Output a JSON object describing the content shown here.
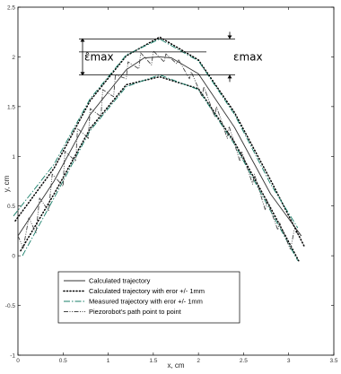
{
  "chart_data": {
    "type": "line",
    "xlabel": "x, cm",
    "ylabel": "y, cm",
    "xlim": [
      0,
      3.5
    ],
    "ylim": [
      -1,
      2.5
    ],
    "xticks": [
      "0",
      "0.5",
      "1",
      "1.5",
      "2",
      "2.5",
      "3",
      "3.5"
    ],
    "yticks": [
      "-1",
      "-0.5",
      "0",
      "0.5",
      "1",
      "1.5",
      "2",
      "2.5"
    ],
    "grid": false,
    "legend_position": "bottom-center",
    "annotations": {
      "eps_max_label": "εmax",
      "eps_hat_max_label": "ε̂max",
      "eps_max_interval": [
        1.82,
        2.18
      ],
      "eps_hat_max_interval": [
        1.82,
        2.18
      ],
      "reference_lines_y": [
        2.18,
        2.05,
        1.82
      ]
    },
    "series": [
      {
        "name": "Calculated trajectory",
        "style": "solid",
        "color": "#333333",
        "x": [
          0,
          0.4,
          0.8,
          1.2,
          1.4,
          1.57,
          1.7,
          2.0,
          2.4,
          2.8,
          3.14
        ],
        "y": [
          0.2,
          0.75,
          1.42,
          1.87,
          1.99,
          2.0,
          1.99,
          1.83,
          1.29,
          0.62,
          0.2
        ]
      },
      {
        "name": "Calculated trajectory with eror +/- 1mm",
        "style": "dotted",
        "color": "#000000",
        "x": [
          -0.03,
          0.4,
          0.8,
          1.2,
          1.57,
          2.0,
          2.4,
          2.8,
          3.17
        ],
        "y": [
          0.35,
          0.88,
          1.56,
          2.01,
          2.2,
          1.97,
          1.44,
          0.76,
          0.1
        ]
      },
      {
        "name": "Calculated trajectory with eror +/- 1mm",
        "style": "dotted",
        "color": "#000000",
        "x": [
          0.03,
          0.4,
          0.8,
          1.2,
          1.57,
          2.0,
          2.4,
          2.8,
          3.11
        ],
        "y": [
          0.05,
          0.62,
          1.28,
          1.72,
          1.8,
          1.68,
          1.14,
          0.48,
          -0.05
        ]
      },
      {
        "name": "Measured trajectory with eror +/- 1mm",
        "style": "dash-dot",
        "color": "#1a7f6a",
        "x": [
          -0.05,
          0.4,
          0.8,
          1.2,
          1.57,
          2.0,
          2.4,
          2.8,
          3.1
        ],
        "y": [
          0.4,
          0.92,
          1.58,
          2.02,
          2.18,
          1.96,
          1.42,
          0.72,
          0.28
        ]
      },
      {
        "name": "Measured trajectory with eror +/- 1mm",
        "style": "dash-dot",
        "color": "#1a7f6a",
        "x": [
          0.05,
          0.4,
          0.8,
          1.2,
          1.57,
          2.0,
          2.4,
          2.8,
          3.1
        ],
        "y": [
          0.0,
          0.58,
          1.26,
          1.7,
          1.82,
          1.67,
          1.12,
          0.45,
          -0.05
        ]
      },
      {
        "name": "Piezorobot's path point to point",
        "style": "dash-dot-dot",
        "color": "#444444",
        "x": [
          0.0,
          0.06,
          0.12,
          0.2,
          0.24,
          0.34,
          0.38,
          0.5,
          0.52,
          0.64,
          0.66,
          0.78,
          0.8,
          0.92,
          0.94,
          1.06,
          1.08,
          1.2,
          1.22,
          1.34,
          1.36,
          1.48,
          1.5,
          1.62,
          1.64,
          1.76,
          1.78,
          1.9,
          1.92,
          2.04,
          2.06,
          2.18,
          2.2,
          2.32,
          2.34,
          2.46,
          2.48,
          2.6,
          2.62,
          2.74,
          2.76,
          2.88,
          2.9,
          3.02,
          3.06,
          3.14
        ],
        "y": [
          0.2,
          0.08,
          0.38,
          0.23,
          0.58,
          0.45,
          0.82,
          0.7,
          1.05,
          0.95,
          1.28,
          1.18,
          1.48,
          1.4,
          1.67,
          1.6,
          1.82,
          1.78,
          1.95,
          1.88,
          2.04,
          1.92,
          2.06,
          1.95,
          2.03,
          1.93,
          1.97,
          1.78,
          1.85,
          1.6,
          1.7,
          1.4,
          1.5,
          1.18,
          1.3,
          0.95,
          1.05,
          0.72,
          0.82,
          0.46,
          0.56,
          0.26,
          0.33,
          0.06,
          0.25,
          0.2
        ]
      }
    ],
    "legend": [
      {
        "label": "Calculated trajectory",
        "style": "solid",
        "color": "#333333"
      },
      {
        "label": "Calculated trajectory with eror +/- 1mm",
        "style": "dotted",
        "color": "#000000"
      },
      {
        "label": "Measured trajectory with eror +/- 1mm",
        "style": "dash-dot",
        "color": "#1a7f6a"
      },
      {
        "label": "Piezorobot's path point to point",
        "style": "dash-dot-dot",
        "color": "#444444"
      }
    ]
  }
}
